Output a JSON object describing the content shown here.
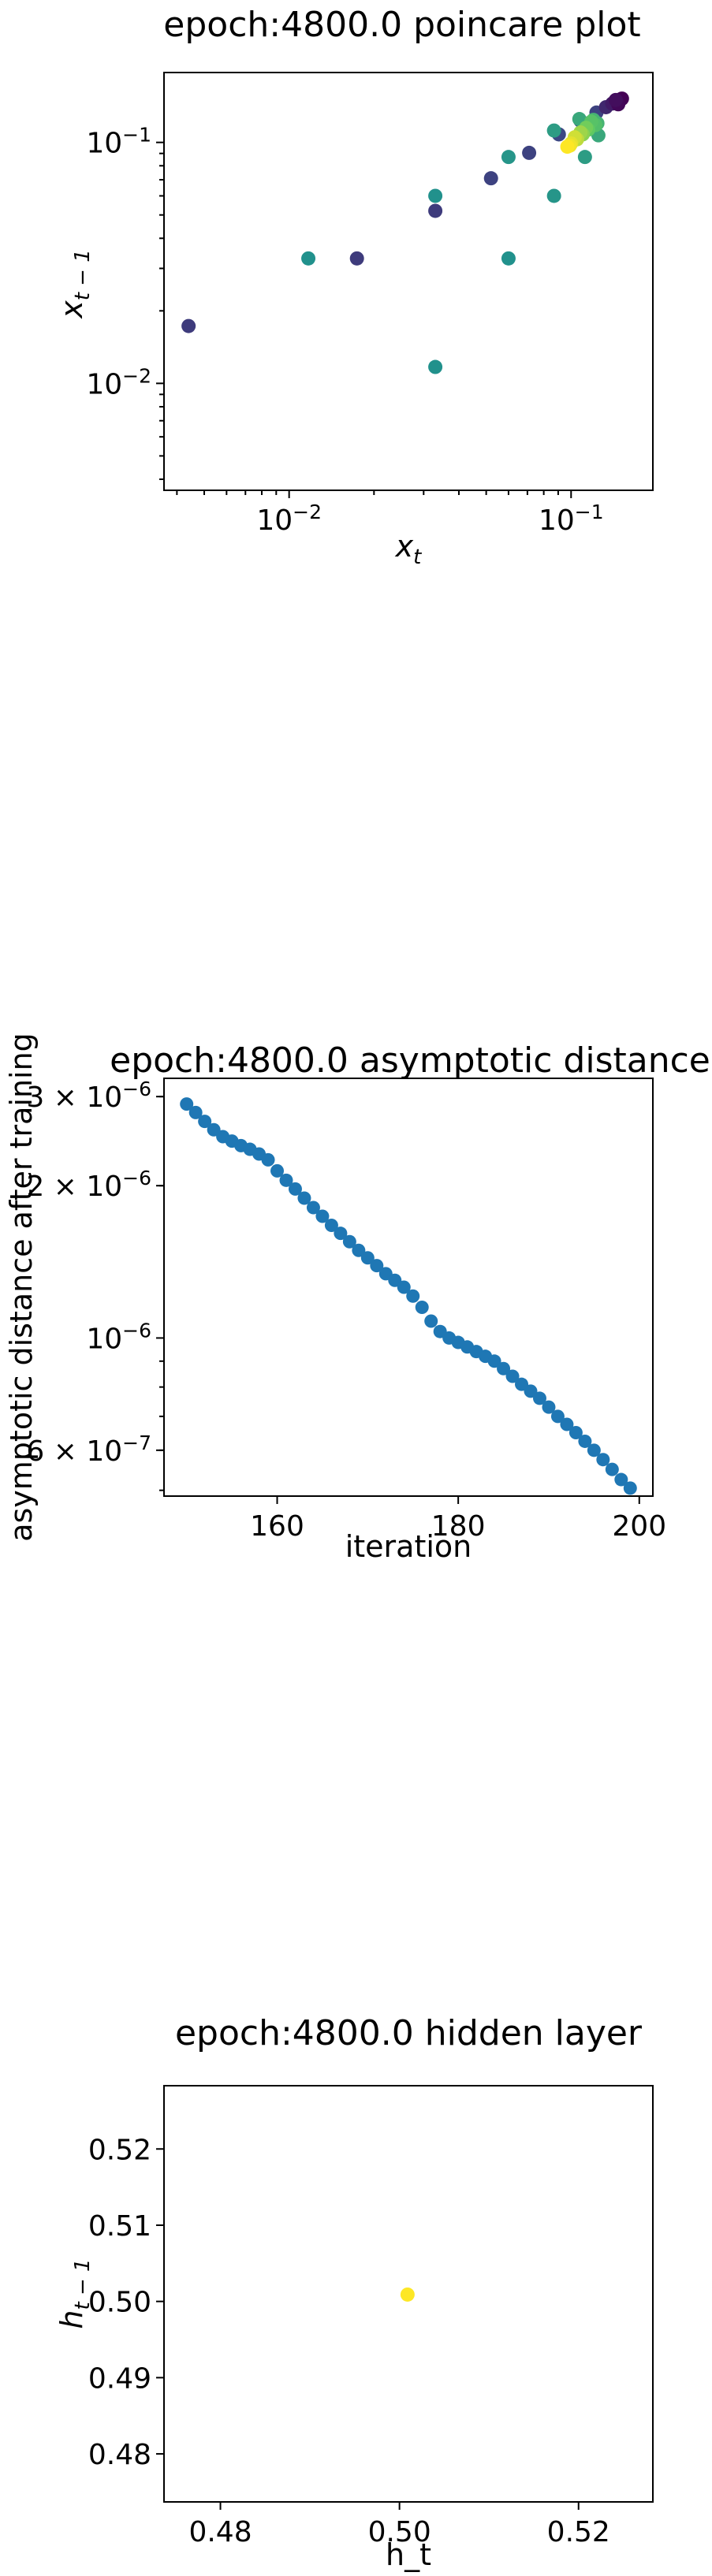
{
  "chart_data": [
    {
      "type": "scatter",
      "title": "epoch:4800.0 poincare plot",
      "xlabel": "x_t",
      "ylabel": "x_{t-1}",
      "xscale": "log",
      "yscale": "log",
      "xlim": [
        0.0036,
        0.195
      ],
      "ylim": [
        0.0036,
        0.195
      ],
      "xticks": [
        {
          "value": 0.01,
          "base": "10",
          "exp": "−2"
        },
        {
          "value": 0.1,
          "base": "10",
          "exp": "−1"
        }
      ],
      "yticks": [
        {
          "value": 0.01,
          "base": "10",
          "exp": "−2"
        },
        {
          "value": 0.1,
          "base": "10",
          "exp": "−1"
        }
      ],
      "colormap": "viridis",
      "points": [
        {
          "x": 0.0044,
          "y": 0.0173,
          "c": 0.18
        },
        {
          "x": 0.0174,
          "y": 0.033,
          "c": 0.18
        },
        {
          "x": 0.033,
          "y": 0.052,
          "c": 0.18
        },
        {
          "x": 0.052,
          "y": 0.071,
          "c": 0.2
        },
        {
          "x": 0.071,
          "y": 0.0905,
          "c": 0.2
        },
        {
          "x": 0.0905,
          "y": 0.108,
          "c": 0.22
        },
        {
          "x": 0.108,
          "y": 0.123,
          "c": 0.22
        },
        {
          "x": 0.123,
          "y": 0.133,
          "c": 0.2
        },
        {
          "x": 0.133,
          "y": 0.14,
          "c": 0.12
        },
        {
          "x": 0.14,
          "y": 0.145,
          "c": 0.08
        },
        {
          "x": 0.145,
          "y": 0.148,
          "c": 0.05
        },
        {
          "x": 0.148,
          "y": 0.15,
          "c": 0.03
        },
        {
          "x": 0.15,
          "y": 0.151,
          "c": 0.02
        },
        {
          "x": 0.151,
          "y": 0.1515,
          "c": 0.01
        },
        {
          "x": 0.1515,
          "y": 0.152,
          "c": 0.0
        },
        {
          "x": 0.147,
          "y": 0.144,
          "c": 0.02
        },
        {
          "x": 0.144,
          "y": 0.15,
          "c": 0.04
        },
        {
          "x": 0.033,
          "y": 0.0117,
          "c": 0.5
        },
        {
          "x": 0.0117,
          "y": 0.033,
          "c": 0.5
        },
        {
          "x": 0.06,
          "y": 0.033,
          "c": 0.5
        },
        {
          "x": 0.033,
          "y": 0.06,
          "c": 0.5
        },
        {
          "x": 0.087,
          "y": 0.06,
          "c": 0.52
        },
        {
          "x": 0.06,
          "y": 0.087,
          "c": 0.52
        },
        {
          "x": 0.112,
          "y": 0.087,
          "c": 0.55
        },
        {
          "x": 0.087,
          "y": 0.112,
          "c": 0.55
        },
        {
          "x": 0.125,
          "y": 0.107,
          "c": 0.6
        },
        {
          "x": 0.107,
          "y": 0.125,
          "c": 0.6
        },
        {
          "x": 0.124,
          "y": 0.12,
          "c": 0.65
        },
        {
          "x": 0.12,
          "y": 0.124,
          "c": 0.65
        },
        {
          "x": 0.122,
          "y": 0.118,
          "c": 0.7
        },
        {
          "x": 0.118,
          "y": 0.122,
          "c": 0.72
        },
        {
          "x": 0.115,
          "y": 0.113,
          "c": 0.75
        },
        {
          "x": 0.113,
          "y": 0.115,
          "c": 0.78
        },
        {
          "x": 0.11,
          "y": 0.108,
          "c": 0.82
        },
        {
          "x": 0.108,
          "y": 0.11,
          "c": 0.85
        },
        {
          "x": 0.105,
          "y": 0.103,
          "c": 0.9
        },
        {
          "x": 0.103,
          "y": 0.105,
          "c": 0.93
        },
        {
          "x": 0.1,
          "y": 0.099,
          "c": 0.96
        },
        {
          "x": 0.099,
          "y": 0.097,
          "c": 0.98
        },
        {
          "x": 0.097,
          "y": 0.096,
          "c": 1.0
        }
      ]
    },
    {
      "type": "scatter",
      "title": "epoch:4800.0 asymptotic distance",
      "xlabel": "iteration",
      "ylabel": "asymptotic distance after training",
      "xscale": "linear",
      "yscale": "log",
      "xlim": [
        147.5,
        201.5
      ],
      "ylim": [
        4.87e-07,
        3.26e-06
      ],
      "xticks": [
        {
          "value": 160,
          "label": "160"
        },
        {
          "value": 180,
          "label": "180"
        },
        {
          "value": 200,
          "label": "200"
        }
      ],
      "yticks": [
        {
          "value": 3e-06,
          "mant": "3 × ",
          "base": "10",
          "exp": "−6"
        },
        {
          "value": 2e-06,
          "mant": "2 × ",
          "base": "10",
          "exp": "−6"
        },
        {
          "value": 1e-06,
          "mant": "",
          "base": "10",
          "exp": "−6"
        },
        {
          "value": 6e-07,
          "mant": "6 × ",
          "base": "10",
          "exp": "−7"
        }
      ],
      "color": "#1f77b4",
      "x": [
        150,
        151,
        152,
        153,
        154,
        155,
        156,
        157,
        158,
        159,
        160,
        161,
        162,
        163,
        164,
        165,
        166,
        167,
        168,
        169,
        170,
        171,
        172,
        173,
        174,
        175,
        176,
        177,
        178,
        179,
        180,
        181,
        182,
        183,
        184,
        185,
        186,
        187,
        188,
        189,
        190,
        191,
        192,
        193,
        194,
        195,
        196,
        197,
        198,
        199
      ],
      "y": [
        2.9e-06,
        2.79e-06,
        2.68e-06,
        2.58e-06,
        2.5e-06,
        2.45e-06,
        2.4e-06,
        2.36e-06,
        2.31e-06,
        2.25e-06,
        2.14e-06,
        2.05e-06,
        1.97e-06,
        1.89e-06,
        1.81e-06,
        1.74e-06,
        1.67e-06,
        1.61e-06,
        1.55e-06,
        1.49e-06,
        1.44e-06,
        1.39e-06,
        1.34e-06,
        1.3e-06,
        1.26e-06,
        1.21e-06,
        1.15e-06,
        1.08e-06,
        1.03e-06,
        1e-06,
        9.8e-07,
        9.6e-07,
        9.4e-07,
        9.2e-07,
        9e-07,
        8.7e-07,
        8.4e-07,
        8.1e-07,
        7.85e-07,
        7.6e-07,
        7.3e-07,
        7e-07,
        6.75e-07,
        6.5e-07,
        6.25e-07,
        6e-07,
        5.75e-07,
        5.5e-07,
        5.25e-07,
        5.05e-07
      ]
    },
    {
      "type": "scatter",
      "title": "epoch:4800.0 hidden layer",
      "xlabel": "h_t",
      "ylabel": "h_{t-1}",
      "xscale": "linear",
      "yscale": "linear",
      "xlim": [
        0.4737,
        0.5283
      ],
      "ylim": [
        0.4737,
        0.5283
      ],
      "xticks": [
        {
          "value": 0.48,
          "label": "0.48"
        },
        {
          "value": 0.5,
          "label": "0.50"
        },
        {
          "value": 0.52,
          "label": "0.52"
        }
      ],
      "yticks": [
        {
          "value": 0.52,
          "label": "0.52"
        },
        {
          "value": 0.51,
          "label": "0.51"
        },
        {
          "value": 0.5,
          "label": "0.50"
        },
        {
          "value": 0.49,
          "label": "0.49"
        },
        {
          "value": 0.48,
          "label": "0.48"
        }
      ],
      "color": "#fde725",
      "points": [
        {
          "x": 0.5009,
          "y": 0.5009
        }
      ]
    }
  ]
}
